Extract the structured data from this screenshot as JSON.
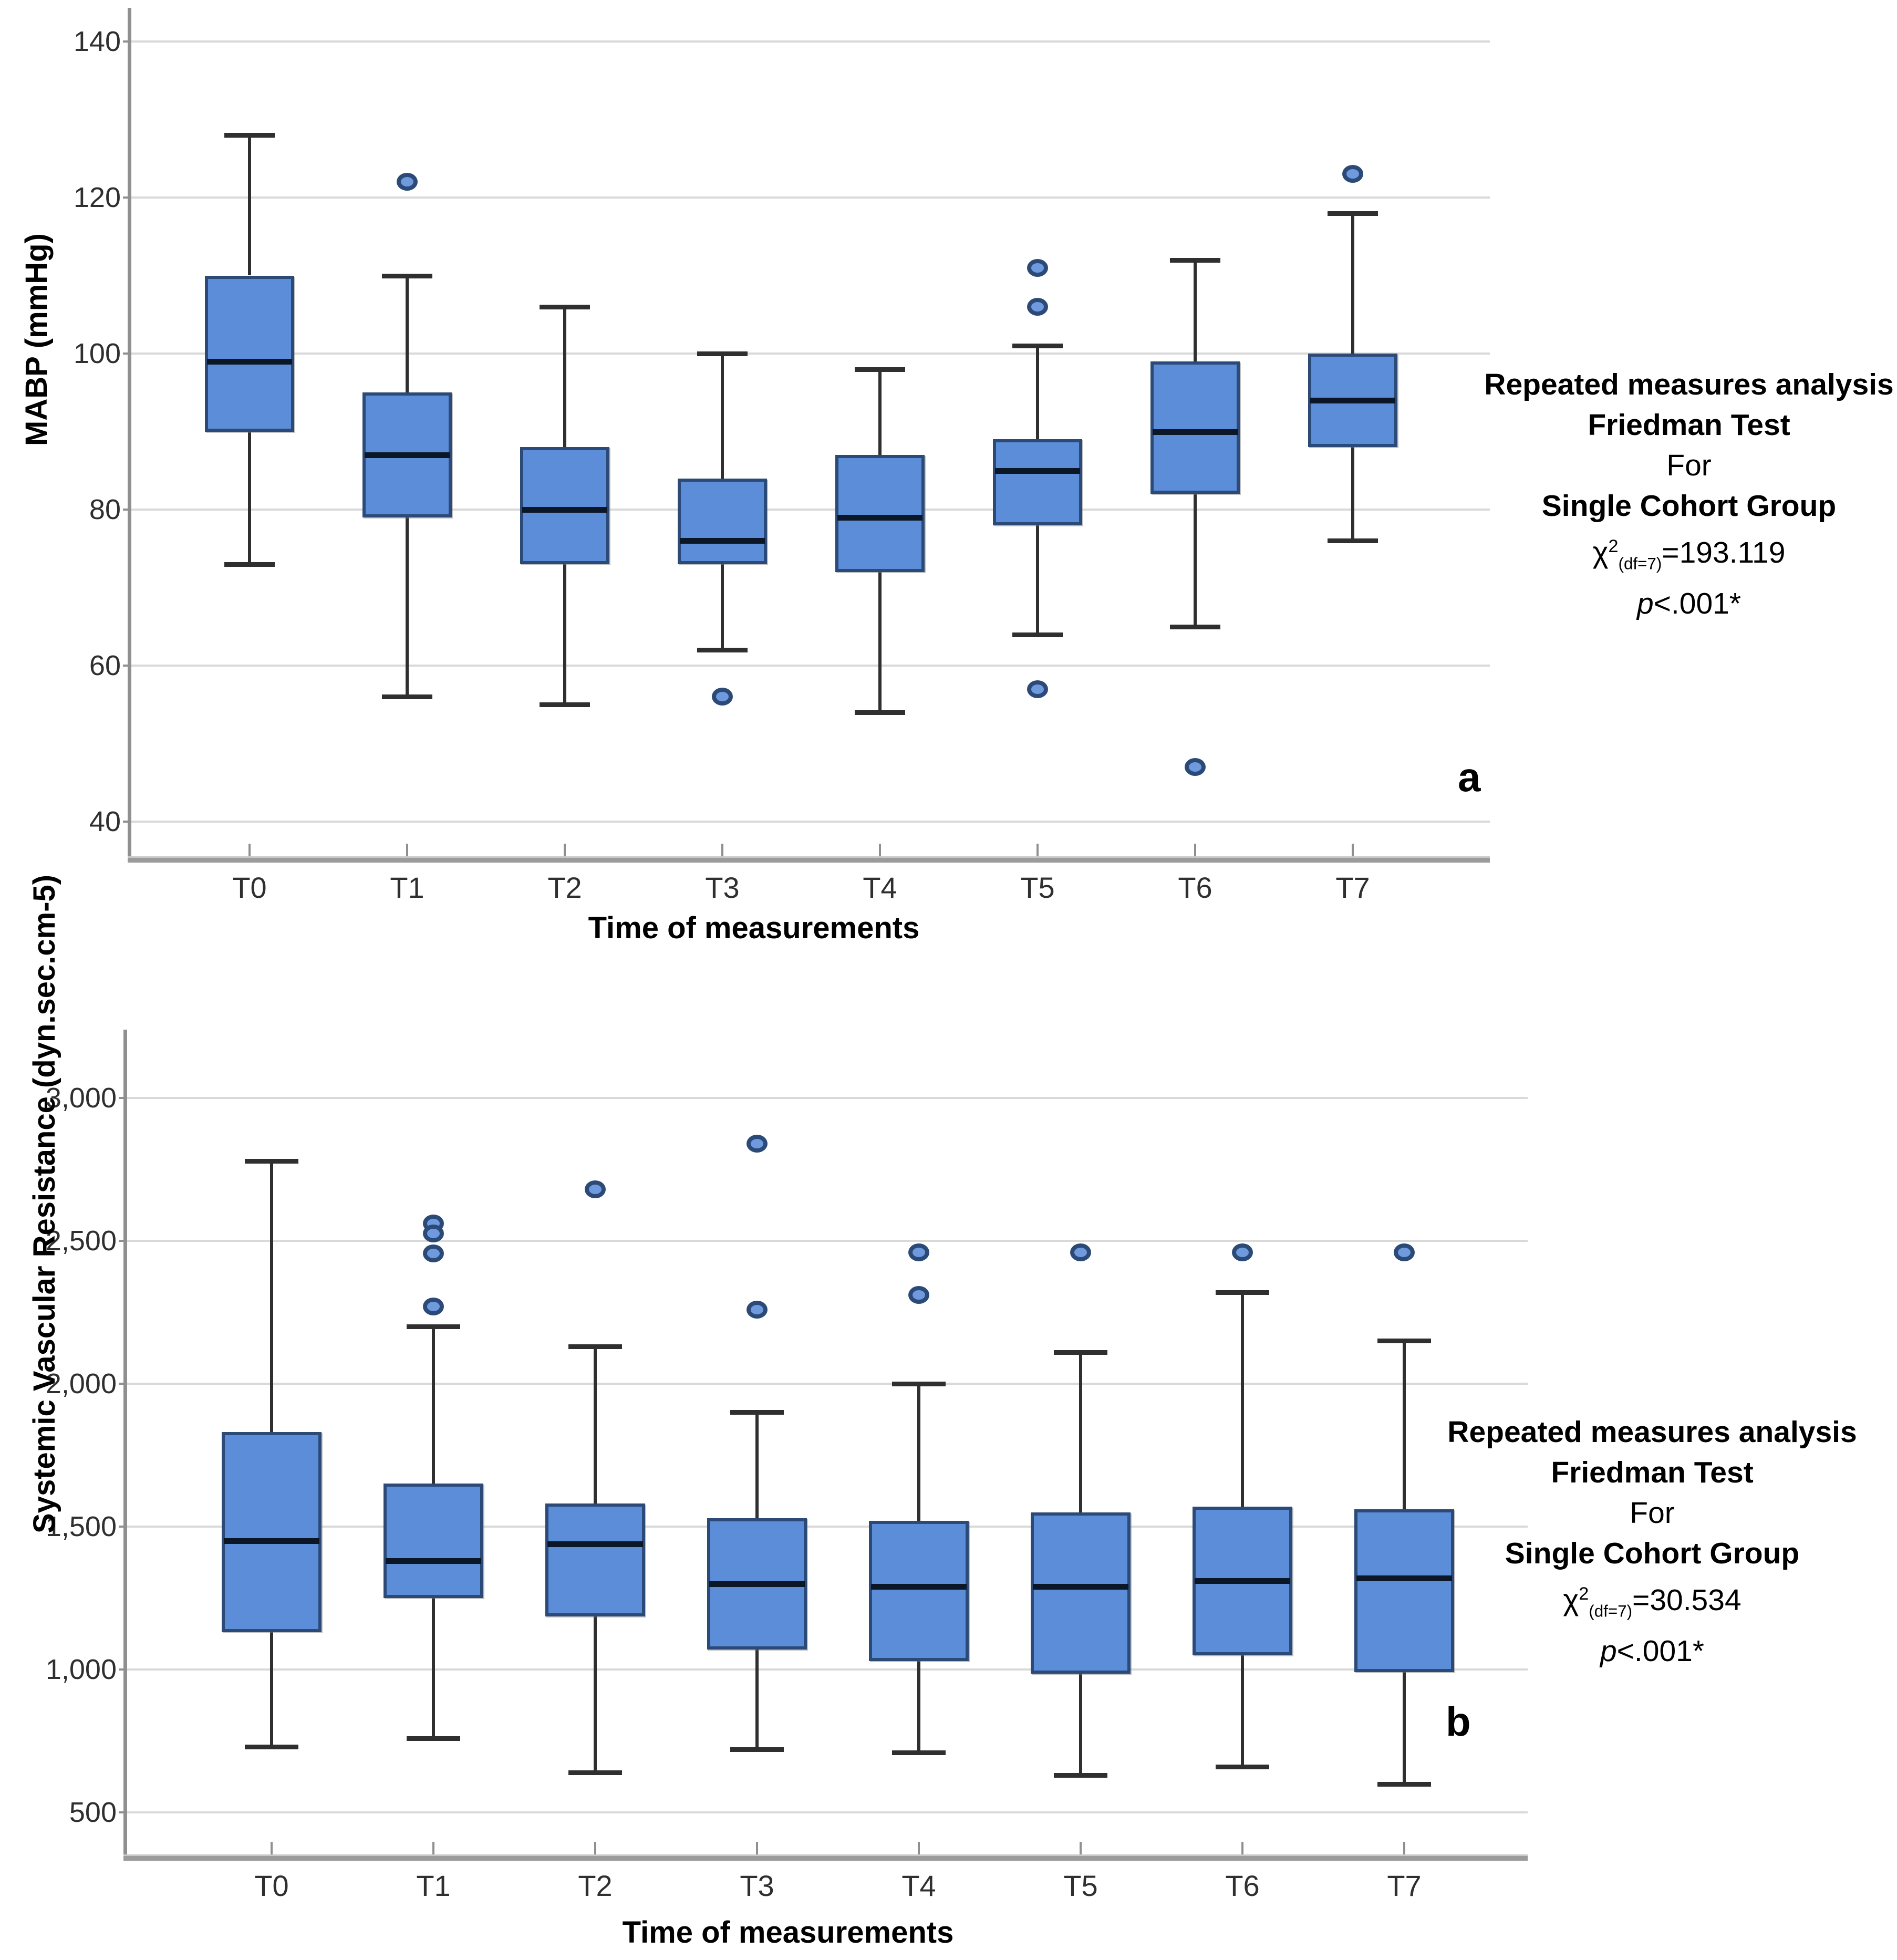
{
  "colors": {
    "box_fill": "#5b8dd8",
    "box_border": "#2b4a78",
    "median": "#0b1626",
    "whisker": "#2f2f2f",
    "gridline": "#d9d9d9",
    "axis": "#8f8f8f",
    "outlier_fill": "#6f9ade",
    "outlier_ring": "#2b4a78",
    "text": "#2f2f2f"
  },
  "chart_data": [
    {
      "id": "a",
      "type": "box",
      "panel_letter": "a",
      "xlabel": "Time of measurements",
      "ylabel": "MABP (mmHg)",
      "categories": [
        "T0",
        "T1",
        "T2",
        "T3",
        "T4",
        "T5",
        "T6",
        "T7"
      ],
      "axis": {
        "min": 40,
        "max": 140,
        "ticks": [
          140,
          120,
          100,
          80,
          60,
          40
        ],
        "tick_labels": [
          "140",
          "120",
          "100",
          "80",
          "60",
          "40"
        ],
        "grid": true
      },
      "series": [
        {
          "name": "T0",
          "low": 73,
          "q1": 90,
          "median": 99,
          "q3": 110,
          "high": 128,
          "outliers": []
        },
        {
          "name": "T1",
          "low": 56,
          "q1": 79,
          "median": 87,
          "q3": 95,
          "high": 110,
          "outliers": [
            122
          ]
        },
        {
          "name": "T2",
          "low": 55,
          "q1": 73,
          "median": 80,
          "q3": 88,
          "high": 106,
          "outliers": []
        },
        {
          "name": "T3",
          "low": 62,
          "q1": 73,
          "median": 76,
          "q3": 84,
          "high": 100,
          "outliers": [
            56
          ]
        },
        {
          "name": "T4",
          "low": 54,
          "q1": 72,
          "median": 79,
          "q3": 87,
          "high": 98,
          "outliers": []
        },
        {
          "name": "T5",
          "low": 64,
          "q1": 78,
          "median": 85,
          "q3": 89,
          "high": 101,
          "outliers": [
            111,
            106,
            57
          ]
        },
        {
          "name": "T6",
          "low": 65,
          "q1": 82,
          "median": 90,
          "q3": 99,
          "high": 112,
          "outliers": [
            47
          ]
        },
        {
          "name": "T7",
          "low": 76,
          "q1": 88,
          "median": 94,
          "q3": 100,
          "high": 118,
          "outliers": [
            123
          ]
        }
      ],
      "annotation": {
        "lines": [
          "Repeated measures analysis",
          "Friedman Test",
          "For",
          "Single Cohort Group"
        ],
        "chi": {
          "symbol": "χ",
          "sup": "2",
          "sub": "(df=7)",
          "value": "=193.119"
        },
        "p_italic": "p",
        "p_rest": "<.001*"
      }
    },
    {
      "id": "b",
      "type": "box",
      "panel_letter": "b",
      "xlabel": "Time of measurements",
      "ylabel": "Systemic Vascular Resistance (dyn.sec.cm-5)",
      "categories": [
        "T0",
        "T1",
        "T2",
        "T3",
        "T4",
        "T5",
        "T6",
        "T7"
      ],
      "axis": {
        "min": 500,
        "max": 3000,
        "ticks": [
          3000,
          2500,
          2000,
          1500,
          1000,
          500
        ],
        "tick_labels": [
          "3,000",
          "2,500",
          "2,000",
          "1,500",
          "1,000",
          "500"
        ],
        "grid": true
      },
      "series": [
        {
          "name": "T0",
          "low": 730,
          "q1": 1130,
          "median": 1450,
          "q3": 1830,
          "high": 2780,
          "outliers": []
        },
        {
          "name": "T1",
          "low": 760,
          "q1": 1250,
          "median": 1380,
          "q3": 1650,
          "high": 2200,
          "outliers": [
            2560,
            2525,
            2455,
            2270
          ]
        },
        {
          "name": "T2",
          "low": 640,
          "q1": 1185,
          "median": 1440,
          "q3": 1580,
          "high": 2130,
          "outliers": [
            2680
          ]
        },
        {
          "name": "T3",
          "low": 720,
          "q1": 1070,
          "median": 1300,
          "q3": 1530,
          "high": 1900,
          "outliers": [
            2840,
            2260
          ]
        },
        {
          "name": "T4",
          "low": 710,
          "q1": 1030,
          "median": 1290,
          "q3": 1520,
          "high": 2000,
          "outliers": [
            2460,
            2310
          ]
        },
        {
          "name": "T5",
          "low": 630,
          "q1": 985,
          "median": 1290,
          "q3": 1550,
          "high": 2110,
          "outliers": [
            2460
          ]
        },
        {
          "name": "T6",
          "low": 660,
          "q1": 1050,
          "median": 1310,
          "q3": 1570,
          "high": 2320,
          "outliers": [
            2460
          ]
        },
        {
          "name": "T7",
          "low": 600,
          "q1": 990,
          "median": 1320,
          "q3": 1560,
          "high": 2150,
          "outliers": [
            2460
          ]
        }
      ],
      "annotation": {
        "lines": [
          "Repeated measures analysis",
          "Friedman Test",
          "For",
          "Single Cohort Group"
        ],
        "chi": {
          "symbol": "χ",
          "sup": "2",
          "sub": "(df=7)",
          "value": "=30.534"
        },
        "p_italic": "p",
        "p_rest": "<.001*"
      }
    }
  ]
}
